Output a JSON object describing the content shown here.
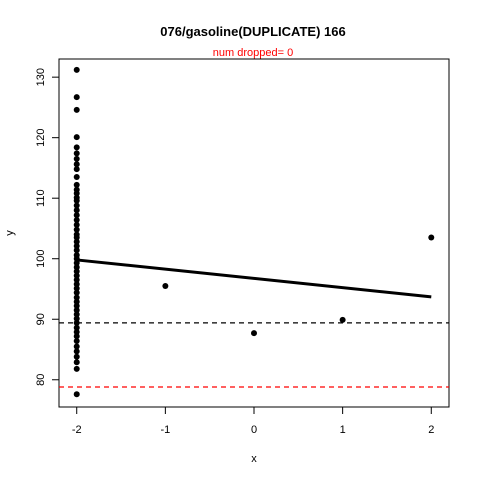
{
  "chart_data": {
    "type": "scatter",
    "title": "076/gasoline(DUPLICATE) 166",
    "subtitle": "num dropped= 0",
    "xlabel": "x",
    "ylabel": "y",
    "xlim": [
      -2.2,
      2.2
    ],
    "ylim": [
      75.5,
      133
    ],
    "x_ticks": [
      "-2",
      "-1",
      "0",
      "1",
      "2"
    ],
    "y_ticks": [
      "80",
      "90",
      "100",
      "110",
      "120",
      "130"
    ],
    "grid": false,
    "colors": {
      "points": "#000000",
      "fit": "#000000",
      "hline_black": "#000000",
      "hline_red": "#ff0000",
      "subtitle": "#ff0000"
    },
    "series": [
      {
        "type": "points",
        "points": [
          [
            -2,
            131.2
          ],
          [
            -2,
            126.7
          ],
          [
            -2,
            124.6
          ],
          [
            -2,
            120.1
          ],
          [
            -2,
            118.4
          ],
          [
            -2,
            117.4
          ],
          [
            -2,
            116.5
          ],
          [
            -2,
            115.6
          ],
          [
            -2,
            114.8
          ],
          [
            -2,
            113.5
          ],
          [
            -2,
            112.2
          ],
          [
            -2,
            111.4
          ],
          [
            -2,
            110.8
          ],
          [
            -2,
            110.1
          ],
          [
            -2,
            109.6
          ],
          [
            -2,
            108.8
          ],
          [
            -2,
            108.0
          ],
          [
            -2,
            107.2
          ],
          [
            -2,
            106.4
          ],
          [
            -2,
            105.6
          ],
          [
            -2,
            104.8
          ],
          [
            -2,
            104.0
          ],
          [
            -2,
            103.5
          ],
          [
            -2,
            102.8
          ],
          [
            -2,
            102.1
          ],
          [
            -2,
            101.4
          ],
          [
            -2,
            100.6
          ],
          [
            -2,
            100.0
          ],
          [
            -2,
            99.3
          ],
          [
            -2,
            98.6
          ],
          [
            -2,
            97.9
          ],
          [
            -2,
            97.2
          ],
          [
            -2,
            96.5
          ],
          [
            -2,
            95.8
          ],
          [
            -2,
            95.1
          ],
          [
            -2,
            94.4
          ],
          [
            -2,
            93.6
          ],
          [
            -2,
            92.9
          ],
          [
            -2,
            92.2
          ],
          [
            -2,
            91.5
          ],
          [
            -2,
            90.8
          ],
          [
            -2,
            90.1
          ],
          [
            -2,
            89.4
          ],
          [
            -2,
            88.6
          ],
          [
            -2,
            87.9
          ],
          [
            -2,
            87.2
          ],
          [
            -2,
            86.4
          ],
          [
            -2,
            85.5
          ],
          [
            -2,
            84.7
          ],
          [
            -2,
            83.8
          ],
          [
            -2,
            82.9
          ],
          [
            -2,
            81.8
          ],
          [
            -2,
            77.6
          ],
          [
            -1,
            95.5
          ],
          [
            0,
            87.7
          ],
          [
            1,
            89.9
          ],
          [
            2,
            103.5
          ]
        ]
      },
      {
        "type": "fit_line",
        "from": [
          -2,
          99.8
        ],
        "to": [
          2,
          93.7
        ]
      },
      {
        "type": "hline",
        "y": 89.4,
        "style": "dashed",
        "color": "black"
      },
      {
        "type": "hline",
        "y": 78.8,
        "style": "dashed",
        "color": "red"
      }
    ]
  }
}
